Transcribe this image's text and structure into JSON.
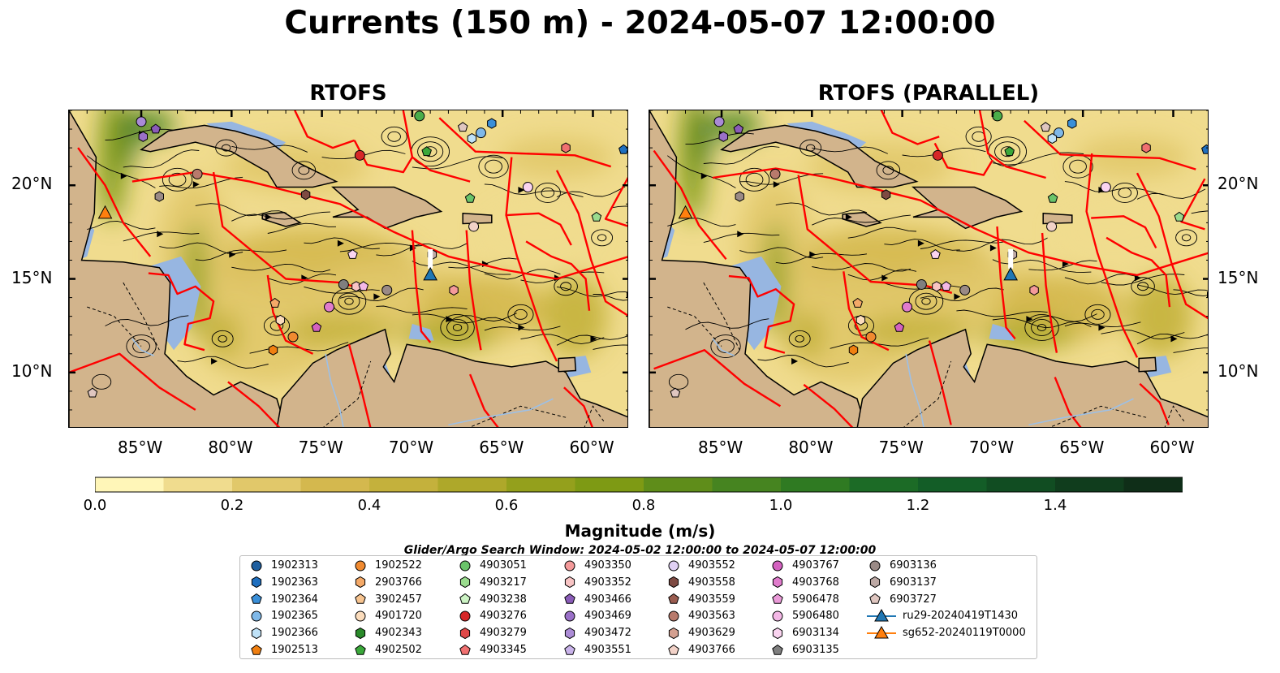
{
  "title": "Currents (150 m) - 2024-05-07 12:00:00",
  "panels": [
    {
      "title": "RTOFS"
    },
    {
      "title": "RTOFS (PARALLEL)"
    }
  ],
  "map": {
    "lon_range": [
      -89,
      -58
    ],
    "lat_range": [
      7,
      24
    ],
    "lon_ticks": [
      "85°W",
      "80°W",
      "75°W",
      "70°W",
      "65°W",
      "60°W"
    ],
    "lat_ticks": [
      "20°N",
      "15°N",
      "10°N"
    ],
    "colors": {
      "ocean": "#97b6e1",
      "land": "#d2b48c",
      "boundary": "#ff0000",
      "streamline": "#000000"
    }
  },
  "colorbar": {
    "label": "Magnitude (m/s)",
    "ticks": [
      "0.0",
      "0.2",
      "0.4",
      "0.6",
      "0.8",
      "1.0",
      "1.2",
      "1.4"
    ],
    "colors": [
      "#fff6b8",
      "#f0dc8e",
      "#e1c86a",
      "#d4b84e",
      "#c4b13c",
      "#aea82a",
      "#94a01c",
      "#7e9a14",
      "#5f8d1a",
      "#468420",
      "#2f7a22",
      "#1c6b26",
      "#135d27",
      "#114d22",
      "#103d1d",
      "#0f2e18",
      "#142212"
    ]
  },
  "search_window": "Glider/Argo Search Window: 2024-05-02 12:00:00 to 2024-05-07 12:00:00",
  "legend": {
    "columns": [
      [
        {
          "label": "1902313",
          "marker": "circle",
          "color": "#1f5f9f"
        },
        {
          "label": "1902363",
          "marker": "hexagon",
          "color": "#1f6fbf"
        },
        {
          "label": "1902364",
          "marker": "pentagon",
          "color": "#3a8fd8"
        },
        {
          "label": "1902365",
          "marker": "circle",
          "color": "#7fb8e8"
        },
        {
          "label": "1902366",
          "marker": "hexagon",
          "color": "#bfe2f8"
        },
        {
          "label": "1902513",
          "marker": "pentagon",
          "color": "#f07f10"
        }
      ],
      [
        {
          "label": "1902522",
          "marker": "circle",
          "color": "#f08a30"
        },
        {
          "label": "2903766",
          "marker": "hexagon",
          "color": "#f4a968"
        },
        {
          "label": "3902457",
          "marker": "pentagon",
          "color": "#f7c490"
        },
        {
          "label": "4901720",
          "marker": "circle",
          "color": "#fbdcbc"
        },
        {
          "label": "4902343",
          "marker": "hexagon",
          "color": "#2a8a2a"
        },
        {
          "label": "4902502",
          "marker": "pentagon",
          "color": "#3aa83a"
        }
      ],
      [
        {
          "label": "4903051",
          "marker": "circle",
          "color": "#6ac46a"
        },
        {
          "label": "4903217",
          "marker": "hexagon",
          "color": "#9adc8e"
        },
        {
          "label": "4903238",
          "marker": "pentagon",
          "color": "#ccf3c4"
        },
        {
          "label": "4903276",
          "marker": "circle",
          "color": "#d62728"
        },
        {
          "label": "4903279",
          "marker": "hexagon",
          "color": "#e04848"
        },
        {
          "label": "4903345",
          "marker": "pentagon",
          "color": "#f07070"
        }
      ],
      [
        {
          "label": "4903350",
          "marker": "circle",
          "color": "#f49a9a"
        },
        {
          "label": "4903352",
          "marker": "hexagon",
          "color": "#f8c4c4"
        },
        {
          "label": "4903466",
          "marker": "pentagon",
          "color": "#8a5cb8"
        },
        {
          "label": "4903469",
          "marker": "circle",
          "color": "#9a70c8"
        },
        {
          "label": "4903472",
          "marker": "hexagon",
          "color": "#ac8cd6"
        },
        {
          "label": "4903551",
          "marker": "pentagon",
          "color": "#c9b3ea"
        }
      ],
      [
        {
          "label": "4903552",
          "marker": "circle",
          "color": "#e0d0f4"
        },
        {
          "label": "4903558",
          "marker": "hexagon",
          "color": "#7e4a42"
        },
        {
          "label": "4903559",
          "marker": "pentagon",
          "color": "#9a5c50"
        },
        {
          "label": "4903563",
          "marker": "circle",
          "color": "#b87a6c"
        },
        {
          "label": "4903629",
          "marker": "hexagon",
          "color": "#d4a090"
        },
        {
          "label": "4903766",
          "marker": "pentagon",
          "color": "#f2d2c8"
        }
      ],
      [
        {
          "label": "4903767",
          "marker": "circle",
          "color": "#d462c0"
        },
        {
          "label": "4903768",
          "marker": "hexagon",
          "color": "#e07ccc"
        },
        {
          "label": "5906478",
          "marker": "pentagon",
          "color": "#ea9ad8"
        },
        {
          "label": "5906480",
          "marker": "circle",
          "color": "#f4b8e6"
        },
        {
          "label": "6903134",
          "marker": "hexagon",
          "color": "#fad4f0"
        },
        {
          "label": "6903135",
          "marker": "pentagon",
          "color": "#7f7f7f"
        }
      ],
      [
        {
          "label": "6903136",
          "marker": "circle",
          "color": "#9a8a86"
        },
        {
          "label": "6903137",
          "marker": "hexagon",
          "color": "#bca8a4"
        },
        {
          "label": "6903727",
          "marker": "pentagon",
          "color": "#dfc6c0"
        },
        {
          "label": "ru29-20240419T1430",
          "marker": "triangle-line",
          "color": "#1f77b4"
        },
        {
          "label": "sg652-20240119T0000",
          "marker": "triangle-line",
          "color": "#ff7f0e"
        }
      ]
    ]
  }
}
